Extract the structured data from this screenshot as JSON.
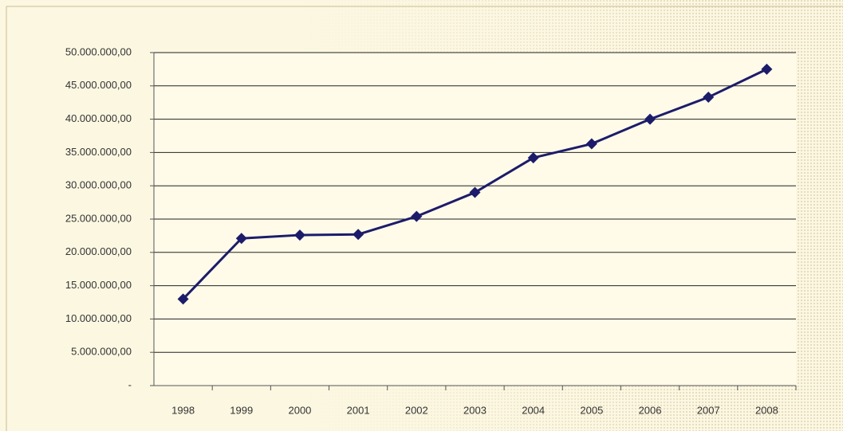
{
  "chart_data": {
    "type": "line",
    "categories": [
      "1998",
      "1999",
      "2000",
      "2001",
      "2002",
      "2003",
      "2004",
      "2005",
      "2006",
      "2007",
      "2008"
    ],
    "series": [
      {
        "name": null,
        "color": "#1c1c6b",
        "values": [
          13000000,
          22100000,
          22600000,
          22700000,
          25400000,
          29000000,
          34200000,
          36300000,
          40000000,
          43300000,
          47500000
        ]
      }
    ],
    "ylim": [
      0,
      50000000
    ],
    "yticks": [
      {
        "value": 0,
        "label": "-"
      },
      {
        "value": 5000000,
        "label": "5.000.000,00"
      },
      {
        "value": 10000000,
        "label": "10.000.000,00"
      },
      {
        "value": 15000000,
        "label": "15.000.000,00"
      },
      {
        "value": 20000000,
        "label": "20.000.000,00"
      },
      {
        "value": 25000000,
        "label": "25.000.000,00"
      },
      {
        "value": 30000000,
        "label": "30.000.000,00"
      },
      {
        "value": 35000000,
        "label": "35.000.000,00"
      },
      {
        "value": 40000000,
        "label": "40.000.000,00"
      },
      {
        "value": 45000000,
        "label": "45.000.000,00"
      },
      {
        "value": 50000000,
        "label": "50.000.000,00"
      }
    ],
    "grid": true
  }
}
